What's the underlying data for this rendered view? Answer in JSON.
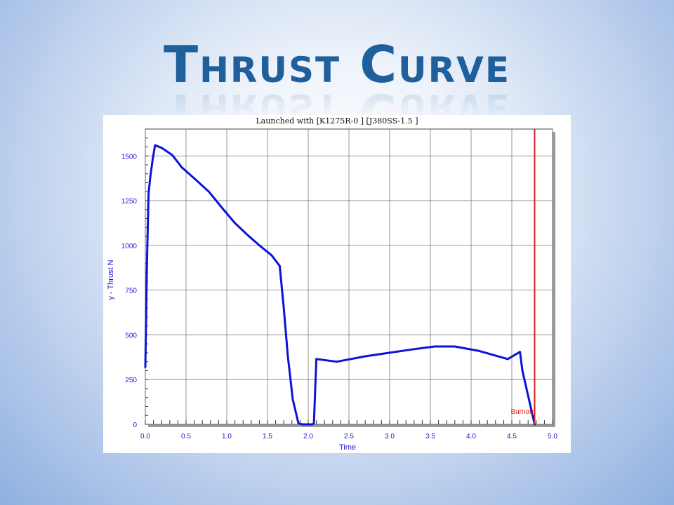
{
  "slide": {
    "title": "Thrust Curve"
  },
  "chart_data": {
    "type": "line",
    "title": "Launched with [K1275R-0   ] [J380SS-1.5 ]",
    "xlabel": "Time",
    "ylabel": "y - Thrust N",
    "xlim": [
      0,
      5.0
    ],
    "ylim": [
      0,
      1650
    ],
    "x_ticks": [
      "0.0",
      "0.5",
      "1.0",
      "1.5",
      "2.0",
      "2.5",
      "3.0",
      "3.5",
      "4.0",
      "4.5",
      "5.0"
    ],
    "y_ticks": [
      "0",
      "250",
      "500",
      "750",
      "1000",
      "1250",
      "1500"
    ],
    "grid": true,
    "line_color": "#0a14d6",
    "series": [
      {
        "x": [
          0.0,
          0.02,
          0.04,
          0.06,
          0.09,
          0.12,
          0.2,
          0.33,
          0.45,
          0.6,
          0.78,
          0.95,
          1.1,
          1.25,
          1.4,
          1.55,
          1.65,
          1.7,
          1.75,
          1.81,
          1.88,
          1.93,
          2.05,
          2.07,
          2.1,
          2.35,
          2.7,
          3.0,
          3.3,
          3.55,
          3.8,
          4.1,
          4.45,
          4.6,
          4.63,
          4.78
        ],
        "y": [
          320,
          900,
          1290,
          1380,
          1480,
          1560,
          1545,
          1505,
          1435,
          1375,
          1300,
          1205,
          1125,
          1060,
          1000,
          945,
          885,
          650,
          380,
          140,
          5,
          0,
          0,
          5,
          365,
          350,
          380,
          400,
          420,
          435,
          435,
          410,
          365,
          405,
          300,
          0
        ]
      }
    ],
    "vline": {
      "x": 4.78,
      "label": "Burnout",
      "color": "#d81f1f"
    }
  }
}
